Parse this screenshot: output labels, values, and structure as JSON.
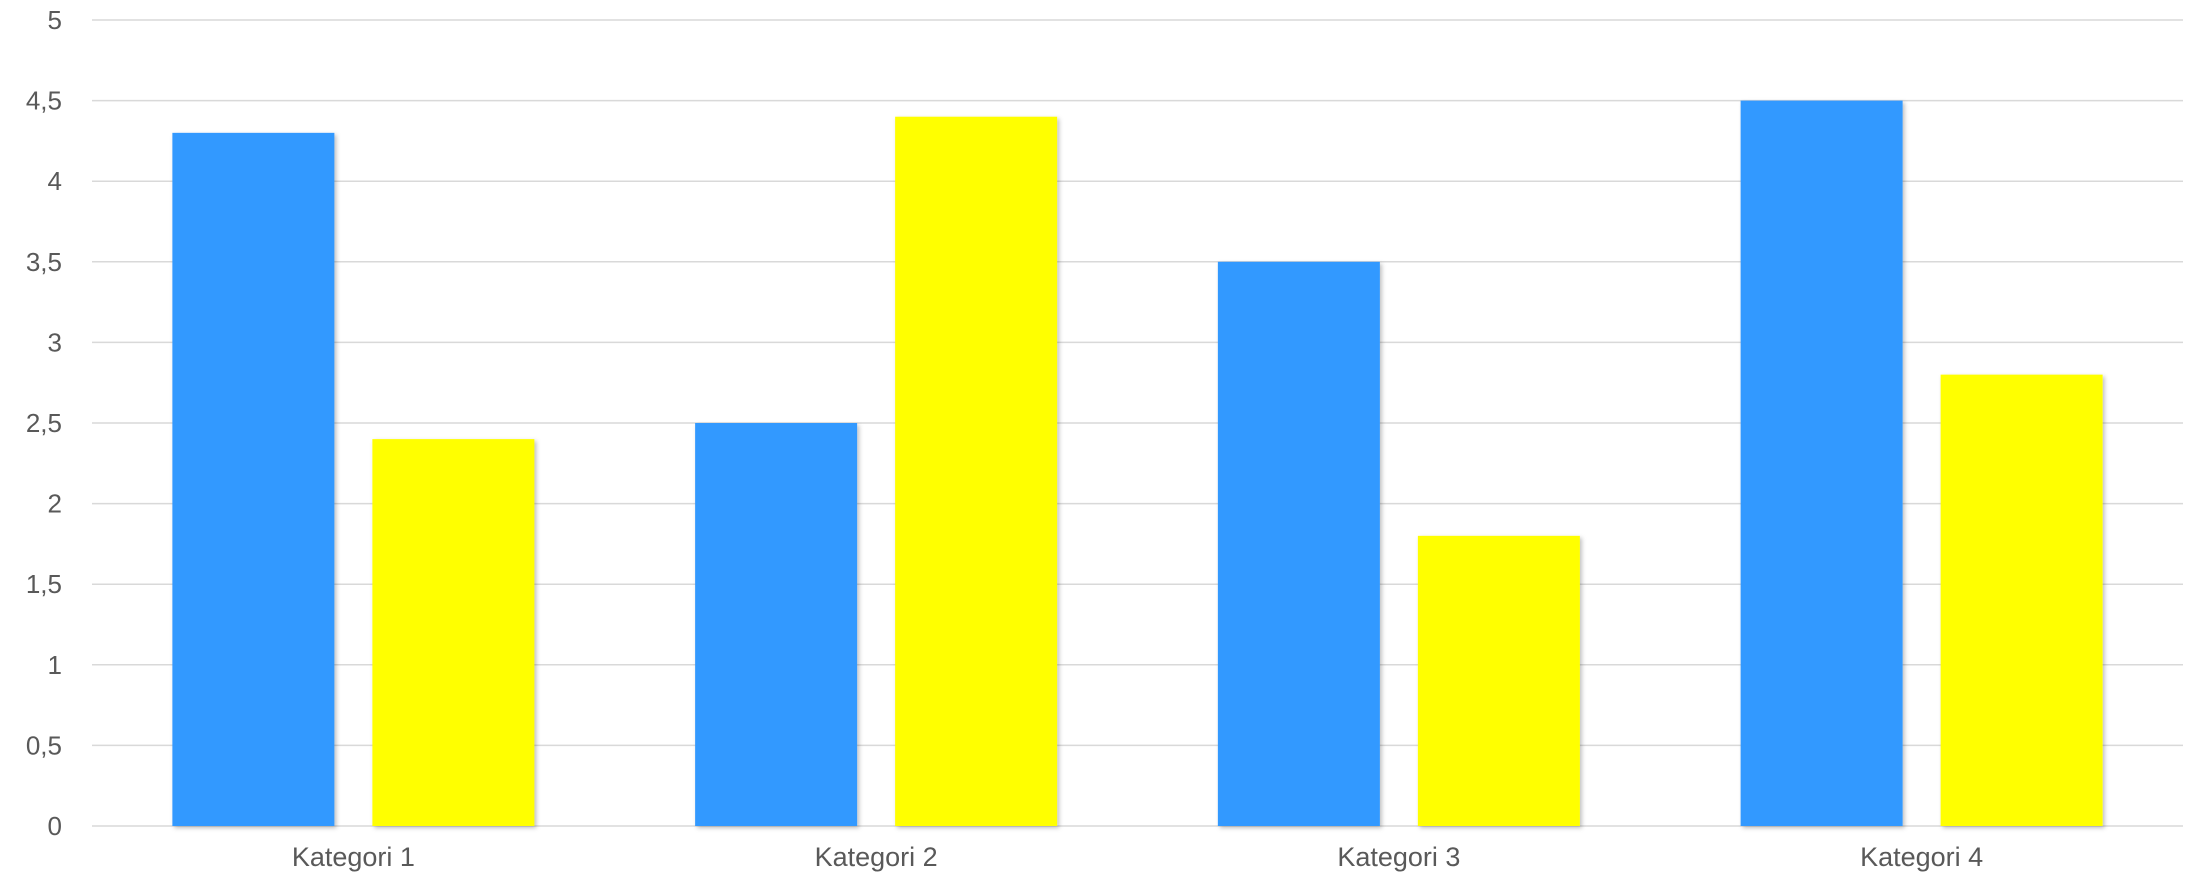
{
  "chart_data": {
    "type": "bar",
    "title": "",
    "xlabel": "",
    "ylabel": "",
    "categories": [
      "Kategori 1",
      "Kategori 2",
      "Kategori 3",
      "Kategori 4"
    ],
    "series": [
      {
        "values": [
          4.3,
          2.5,
          3.5,
          4.5
        ],
        "color": "#3399FF"
      },
      {
        "values": [
          2.4,
          4.4,
          1.8,
          2.8
        ],
        "color": "#FFFF00"
      }
    ],
    "ylim": [
      0,
      5
    ],
    "yticks": [
      {
        "value": 0,
        "label": "0"
      },
      {
        "value": 0.5,
        "label": "0,5"
      },
      {
        "value": 1,
        "label": "1"
      },
      {
        "value": 1.5,
        "label": "1,5"
      },
      {
        "value": 2,
        "label": "2"
      },
      {
        "value": 2.5,
        "label": "2,5"
      },
      {
        "value": 3,
        "label": "3"
      },
      {
        "value": 3.5,
        "label": "3,5"
      },
      {
        "value": 4,
        "label": "4"
      },
      {
        "value": 4.5,
        "label": "4,5"
      },
      {
        "value": 5,
        "label": "5"
      }
    ],
    "grid": true,
    "legend": "none",
    "gridline_color": "#D9D9D9"
  }
}
